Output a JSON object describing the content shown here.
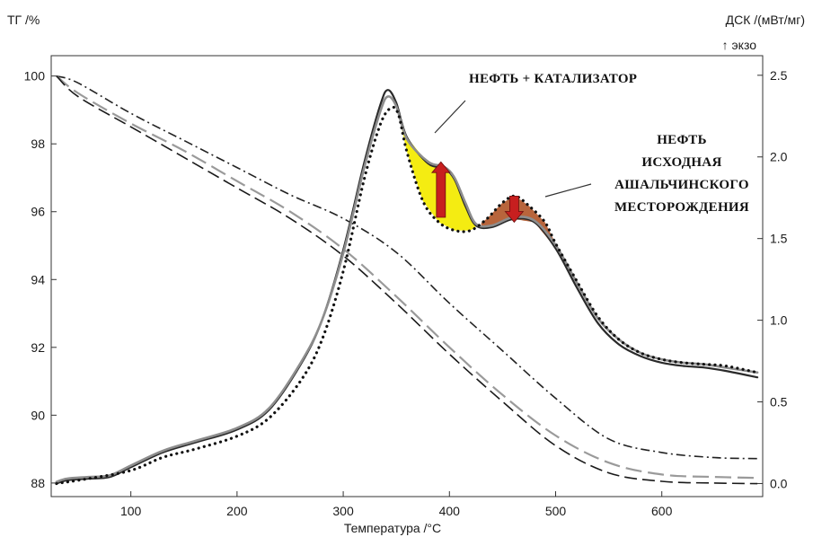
{
  "chart_data": {
    "type": "line",
    "x_label": "Температура /°C",
    "y_left_label": "ТГ /%",
    "y_right_label": "ДСК /(мВт/мг)",
    "y_right_sublabel": "↑ экзо",
    "x_range": [
      25,
      695
    ],
    "y_left_range": [
      87.6,
      100.6
    ],
    "y_right_range": [
      -0.08,
      2.62
    ],
    "x_ticks": [
      "100",
      "200",
      "300",
      "400",
      "500",
      "600"
    ],
    "y_left_ticks": [
      "100",
      "98",
      "96",
      "94",
      "92",
      "90",
      "88"
    ],
    "y_right_ticks": [
      "2.5",
      "2.0",
      "1.5",
      "1.0",
      "0.5",
      "0.0"
    ],
    "annotations": {
      "catalyst": "НЕФТЬ + КАТАЛИЗАТОР",
      "original": [
        "НЕФТЬ",
        "ИСХОДНАЯ",
        "АШАЛЬЧИНСКОГО",
        "МЕСТОРОЖДЕНИЯ"
      ]
    },
    "colors": {
      "yellow_fill": "#f4ec12",
      "brown_fill": "#b8653c",
      "arrow": "#c71f1f"
    },
    "series": [
      {
        "axis": "left",
        "style": "dash-dot",
        "x": [
          30,
          50,
          100,
          150,
          200,
          250,
          300,
          350,
          400,
          450,
          500,
          550,
          600,
          650,
          690
        ],
        "y": [
          100.0,
          99.8,
          98.9,
          98.1,
          97.3,
          96.5,
          95.8,
          94.8,
          93.3,
          91.9,
          90.5,
          89.3,
          88.9,
          88.75,
          88.72
        ]
      },
      {
        "axis": "left",
        "style": "long-dash",
        "x": [
          30,
          50,
          100,
          150,
          200,
          250,
          300,
          350,
          400,
          450,
          500,
          550,
          600,
          650,
          690
        ],
        "y": [
          100.0,
          99.5,
          98.6,
          97.8,
          96.9,
          96.0,
          94.9,
          93.5,
          92.0,
          90.6,
          89.4,
          88.6,
          88.25,
          88.18,
          88.15
        ]
      },
      {
        "axis": "left",
        "style": "dashed",
        "x": [
          30,
          50,
          100,
          150,
          200,
          250,
          300,
          350,
          400,
          450,
          500,
          550,
          600,
          650,
          690
        ],
        "y": [
          100.0,
          99.4,
          98.5,
          97.6,
          96.7,
          95.8,
          94.7,
          93.3,
          91.8,
          90.4,
          89.1,
          88.3,
          88.05,
          88.0,
          87.98
        ]
      },
      {
        "axis": "right",
        "style": "solid-dark",
        "x": [
          30,
          40,
          60,
          80,
          100,
          130,
          160,
          200,
          230,
          260,
          280,
          300,
          320,
          335,
          342,
          350,
          360,
          380,
          395,
          405,
          415,
          425,
          440,
          460,
          480,
          500,
          520,
          540,
          560,
          580,
          600,
          620,
          640,
          660,
          690
        ],
        "y": [
          0.0,
          0.02,
          0.03,
          0.04,
          0.1,
          0.19,
          0.25,
          0.33,
          0.45,
          0.73,
          1.0,
          1.43,
          1.97,
          2.32,
          2.41,
          2.33,
          2.12,
          1.96,
          1.93,
          1.86,
          1.7,
          1.58,
          1.57,
          1.62,
          1.6,
          1.44,
          1.2,
          0.98,
          0.85,
          0.78,
          0.74,
          0.72,
          0.71,
          0.69,
          0.65
        ]
      },
      {
        "axis": "right",
        "style": "solid-gray",
        "x": [
          30,
          40,
          60,
          80,
          100,
          130,
          160,
          200,
          230,
          260,
          280,
          300,
          320,
          335,
          342,
          350,
          360,
          380,
          395,
          405,
          415,
          425,
          440,
          460,
          480,
          500,
          520,
          540,
          560,
          580,
          600,
          620,
          640,
          660,
          690
        ],
        "y": [
          0.01,
          0.03,
          0.04,
          0.05,
          0.11,
          0.2,
          0.26,
          0.34,
          0.46,
          0.74,
          1.0,
          1.41,
          1.94,
          2.28,
          2.37,
          2.31,
          2.11,
          1.97,
          1.94,
          1.87,
          1.72,
          1.59,
          1.58,
          1.63,
          1.61,
          1.46,
          1.23,
          1.01,
          0.88,
          0.8,
          0.76,
          0.74,
          0.73,
          0.71,
          0.68
        ]
      },
      {
        "axis": "right",
        "style": "dotted",
        "x": [
          30,
          60,
          100,
          130,
          160,
          200,
          230,
          260,
          280,
          300,
          320,
          335,
          345,
          352,
          360,
          375,
          390,
          405,
          420,
          435,
          450,
          462,
          475,
          490,
          500,
          520,
          540,
          560,
          580,
          600,
          620,
          640,
          660,
          690
        ],
        "y": [
          0.0,
          0.03,
          0.08,
          0.16,
          0.21,
          0.29,
          0.4,
          0.63,
          0.88,
          1.3,
          1.87,
          2.2,
          2.3,
          2.26,
          2.03,
          1.73,
          1.6,
          1.55,
          1.55,
          1.62,
          1.72,
          1.76,
          1.7,
          1.6,
          1.47,
          1.24,
          1.02,
          0.88,
          0.8,
          0.76,
          0.74,
          0.73,
          0.72,
          0.68
        ]
      }
    ]
  }
}
